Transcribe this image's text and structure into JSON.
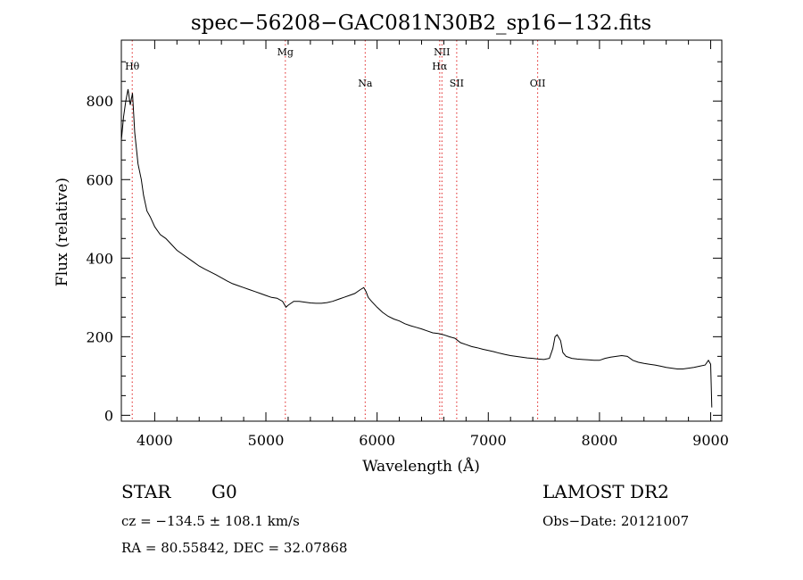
{
  "chart_data": {
    "type": "line",
    "title": "spec−56208−GAC081N30B2_sp16−132.fits",
    "xlabel": "Wavelength (Å)",
    "ylabel": "Flux (relative)",
    "xlim": [
      3700,
      9100
    ],
    "ylim": [
      -15,
      955
    ],
    "x_ticks": [
      4000,
      5000,
      6000,
      7000,
      8000,
      9000
    ],
    "y_ticks": [
      0,
      200,
      400,
      600,
      800
    ],
    "x_tick_labels": [
      "4000",
      "5000",
      "6000",
      "7000",
      "8000",
      "9000"
    ],
    "y_tick_labels": [
      "0",
      "200",
      "400",
      "600",
      "800"
    ],
    "grid": false,
    "series": [
      {
        "color": "#000000",
        "points": [
          [
            3700,
            700
          ],
          [
            3720,
            760
          ],
          [
            3740,
            800
          ],
          [
            3760,
            830
          ],
          [
            3780,
            790
          ],
          [
            3800,
            820
          ],
          [
            3820,
            720
          ],
          [
            3850,
            640
          ],
          [
            3880,
            600
          ],
          [
            3900,
            560
          ],
          [
            3930,
            520
          ],
          [
            3960,
            505
          ],
          [
            4000,
            480
          ],
          [
            4050,
            460
          ],
          [
            4100,
            450
          ],
          [
            4150,
            435
          ],
          [
            4200,
            420
          ],
          [
            4250,
            410
          ],
          [
            4300,
            400
          ],
          [
            4350,
            390
          ],
          [
            4400,
            380
          ],
          [
            4450,
            372
          ],
          [
            4500,
            365
          ],
          [
            4550,
            358
          ],
          [
            4600,
            350
          ],
          [
            4650,
            342
          ],
          [
            4700,
            335
          ],
          [
            4750,
            330
          ],
          [
            4800,
            325
          ],
          [
            4850,
            320
          ],
          [
            4900,
            315
          ],
          [
            4950,
            310
          ],
          [
            5000,
            305
          ],
          [
            5050,
            300
          ],
          [
            5100,
            298
          ],
          [
            5150,
            290
          ],
          [
            5180,
            275
          ],
          [
            5200,
            280
          ],
          [
            5250,
            290
          ],
          [
            5300,
            290
          ],
          [
            5350,
            288
          ],
          [
            5400,
            286
          ],
          [
            5450,
            285
          ],
          [
            5500,
            285
          ],
          [
            5550,
            287
          ],
          [
            5600,
            290
          ],
          [
            5650,
            295
          ],
          [
            5700,
            300
          ],
          [
            5750,
            305
          ],
          [
            5800,
            310
          ],
          [
            5850,
            320
          ],
          [
            5880,
            325
          ],
          [
            5900,
            315
          ],
          [
            5920,
            300
          ],
          [
            5950,
            290
          ],
          [
            6000,
            275
          ],
          [
            6050,
            262
          ],
          [
            6100,
            252
          ],
          [
            6150,
            245
          ],
          [
            6200,
            240
          ],
          [
            6250,
            233
          ],
          [
            6300,
            228
          ],
          [
            6350,
            224
          ],
          [
            6400,
            220
          ],
          [
            6450,
            215
          ],
          [
            6500,
            210
          ],
          [
            6550,
            208
          ],
          [
            6600,
            205
          ],
          [
            6650,
            200
          ],
          [
            6700,
            196
          ],
          [
            6750,
            185
          ],
          [
            6800,
            180
          ],
          [
            6850,
            175
          ],
          [
            6900,
            172
          ],
          [
            6950,
            168
          ],
          [
            7000,
            165
          ],
          [
            7050,
            162
          ],
          [
            7100,
            158
          ],
          [
            7150,
            155
          ],
          [
            7200,
            152
          ],
          [
            7250,
            150
          ],
          [
            7300,
            148
          ],
          [
            7350,
            146
          ],
          [
            7400,
            145
          ],
          [
            7450,
            143
          ],
          [
            7500,
            142
          ],
          [
            7550,
            145
          ],
          [
            7580,
            170
          ],
          [
            7600,
            200
          ],
          [
            7620,
            205
          ],
          [
            7650,
            190
          ],
          [
            7670,
            160
          ],
          [
            7700,
            150
          ],
          [
            7750,
            145
          ],
          [
            7800,
            143
          ],
          [
            7850,
            142
          ],
          [
            7900,
            141
          ],
          [
            7950,
            140
          ],
          [
            8000,
            140
          ],
          [
            8050,
            145
          ],
          [
            8100,
            148
          ],
          [
            8150,
            150
          ],
          [
            8200,
            152
          ],
          [
            8250,
            150
          ],
          [
            8300,
            140
          ],
          [
            8350,
            135
          ],
          [
            8400,
            132
          ],
          [
            8450,
            130
          ],
          [
            8500,
            128
          ],
          [
            8550,
            125
          ],
          [
            8600,
            122
          ],
          [
            8650,
            120
          ],
          [
            8700,
            118
          ],
          [
            8750,
            118
          ],
          [
            8800,
            120
          ],
          [
            8850,
            122
          ],
          [
            8900,
            125
          ],
          [
            8950,
            128
          ],
          [
            8980,
            140
          ],
          [
            9000,
            130
          ],
          [
            9010,
            20
          ]
        ]
      }
    ],
    "line_markers": [
      {
        "label": "Hθ",
        "wavelength": 3798,
        "row": 1
      },
      {
        "label": "Mg",
        "wavelength": 5175,
        "row": 0
      },
      {
        "label": "Na",
        "wavelength": 5893,
        "row": 2
      },
      {
        "label": "NII",
        "wavelength": 6583,
        "row": 0
      },
      {
        "label": "Hα",
        "wavelength": 6563,
        "row": 1
      },
      {
        "label": "SII",
        "wavelength": 6716,
        "row": 2
      },
      {
        "label": "OII",
        "wavelength": 7444,
        "row": 2
      }
    ],
    "marker_color": "#e02020"
  },
  "info": {
    "object_class": "STAR",
    "subclass": "G0",
    "survey": "LAMOST DR2",
    "redshift_line": "cz = −134.5 ± 108.1 km/s",
    "obs_date": "Obs−Date: 20121007",
    "coords_line": "RA =  80.55842, DEC =  32.07868"
  }
}
